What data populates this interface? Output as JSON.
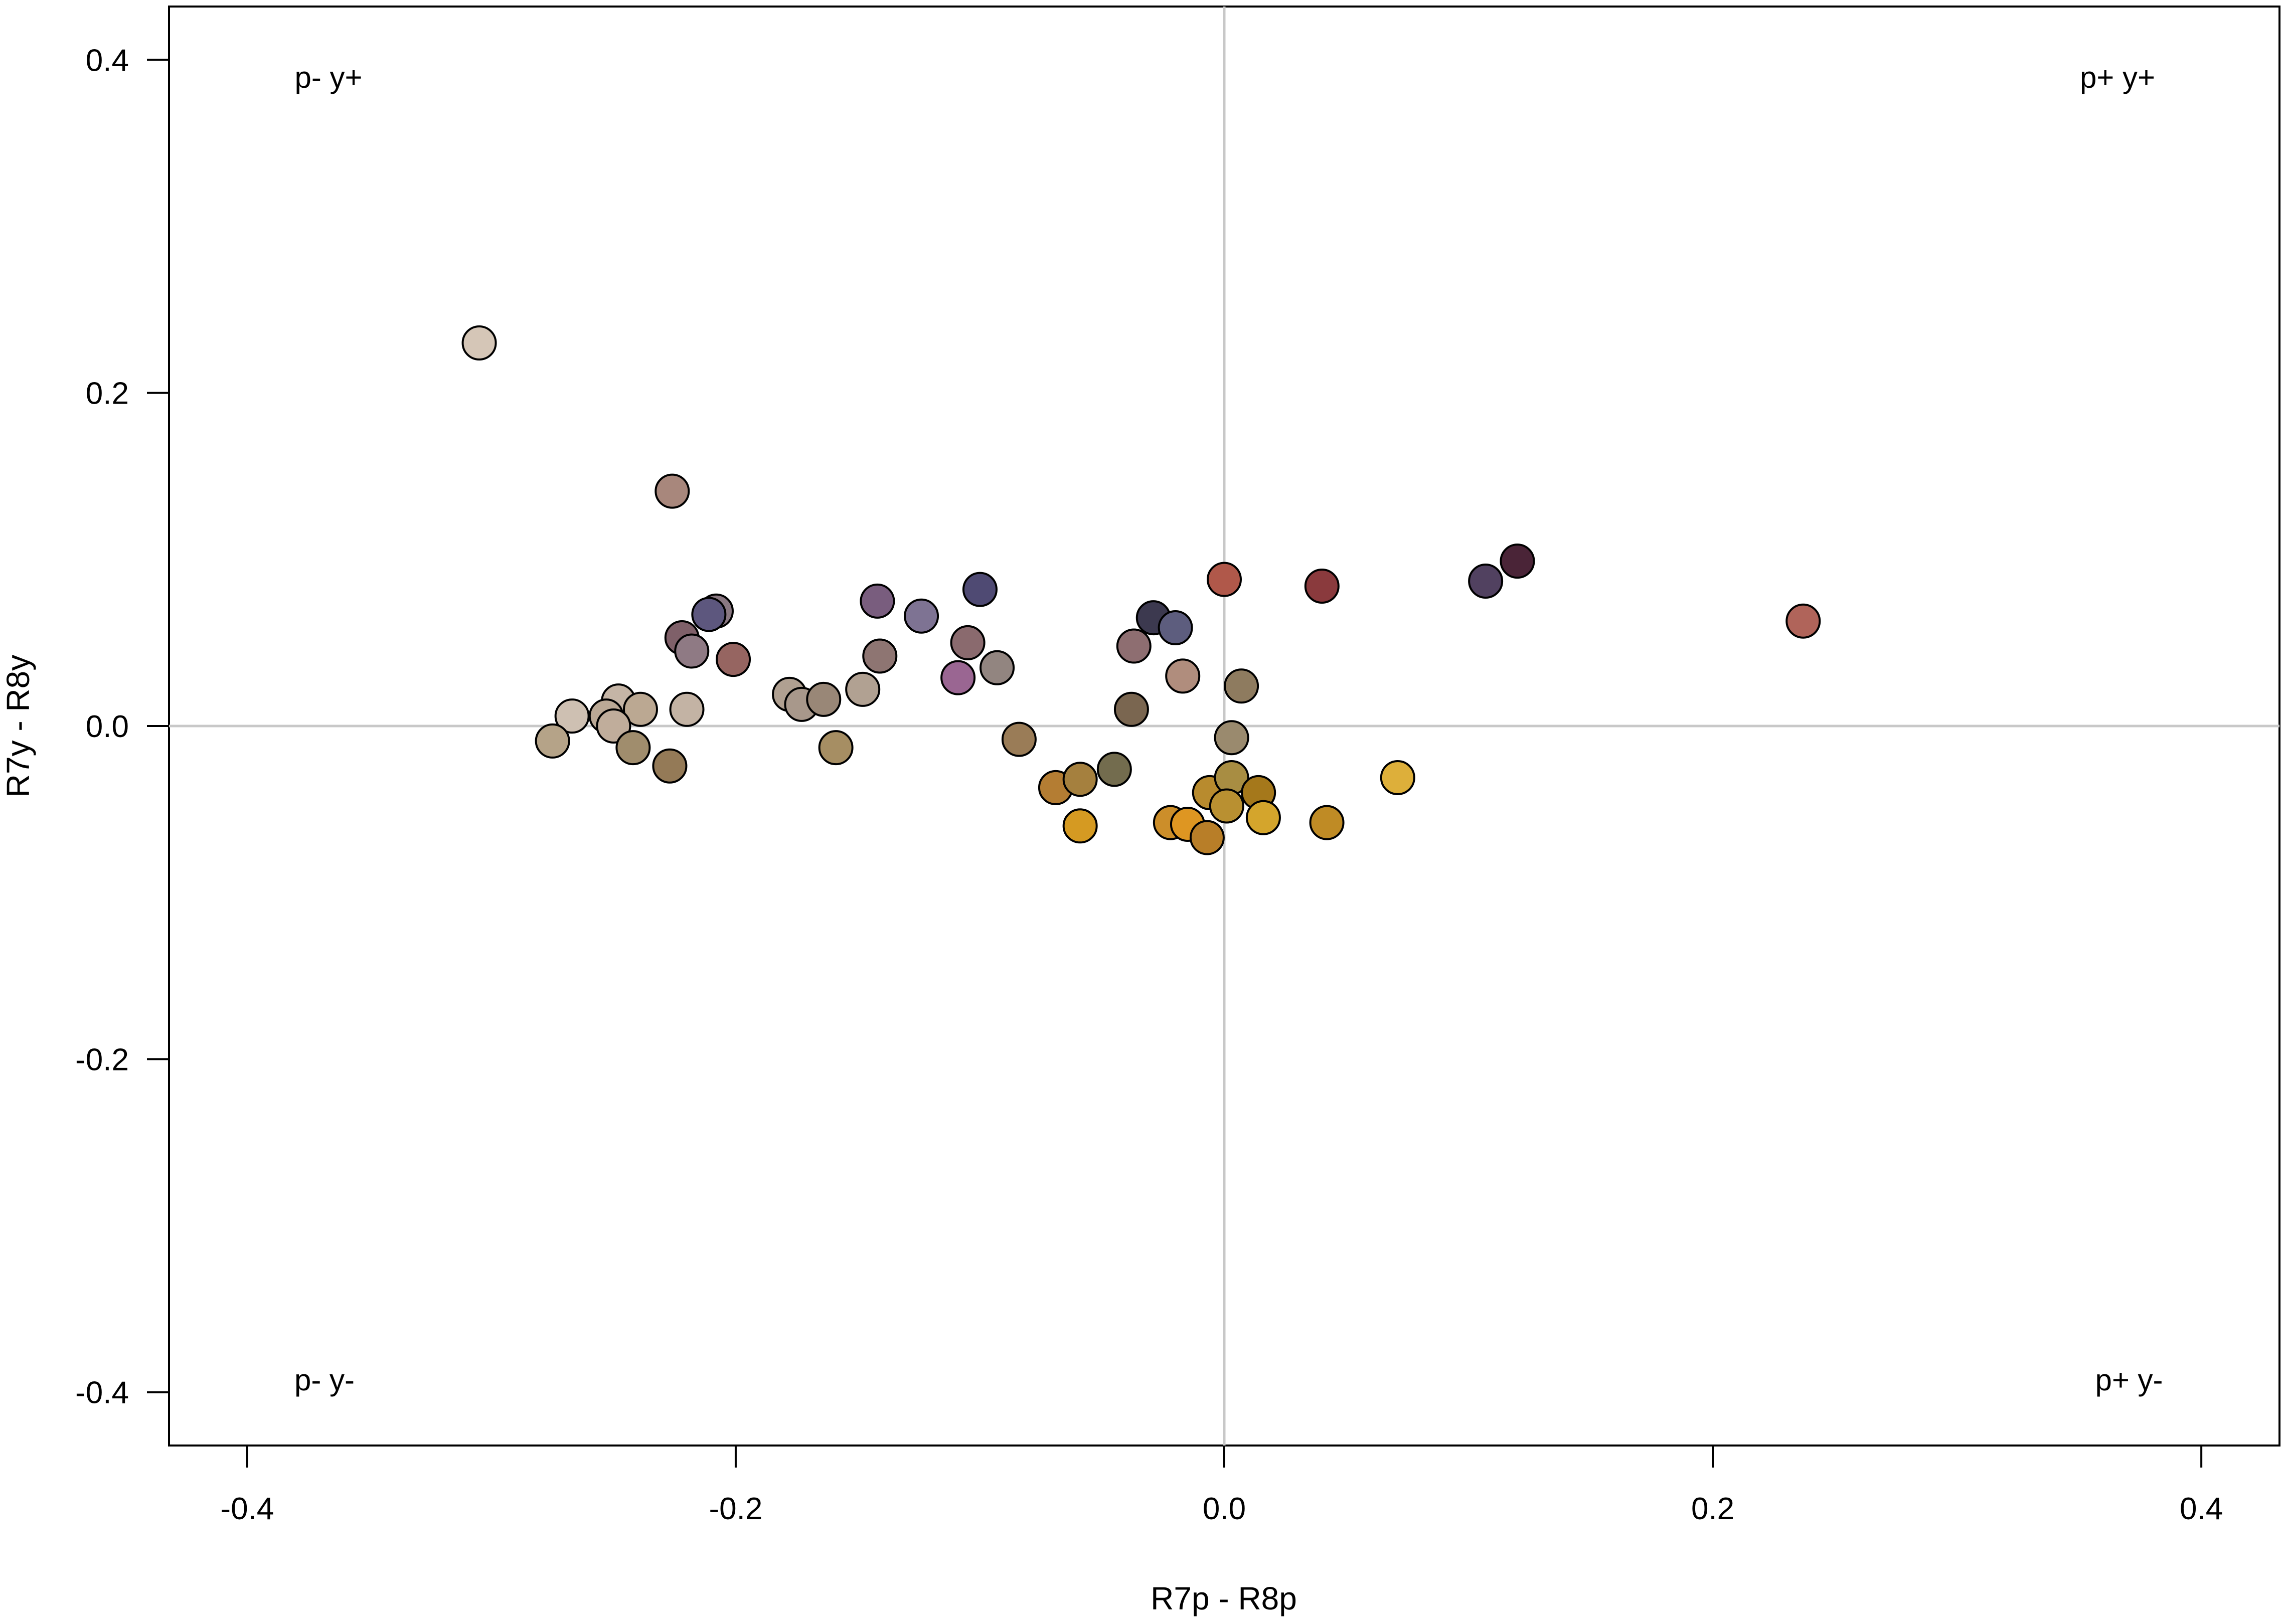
{
  "chart_data": {
    "type": "scatter",
    "xlabel": "R7p - R8p",
    "ylabel": "R7y - R8y",
    "xlim": [
      -0.432,
      0.432
    ],
    "ylim": [
      -0.432,
      0.432
    ],
    "xticks": [
      "-0.4",
      "-0.2",
      "0.0",
      "0.2",
      "0.4"
    ],
    "yticks": [
      "0.4",
      "0.2",
      "0.0",
      "-0.2",
      "-0.4"
    ],
    "reference_lines": {
      "x": 0.0,
      "y": 0.0,
      "color": "#c8c8c8"
    },
    "grid": false,
    "quadrant_labels": [
      {
        "text": "p- y+",
        "quadrant": "top-left"
      },
      {
        "text": "p+ y+",
        "quadrant": "top-right"
      },
      {
        "text": "p- y-",
        "quadrant": "bottom-left"
      },
      {
        "text": "p+ y-",
        "quadrant": "bottom-right"
      }
    ],
    "points": [
      {
        "x": -0.305,
        "y": 0.23,
        "color": "#d5c6b7"
      },
      {
        "x": -0.226,
        "y": 0.141,
        "color": "#a8877c"
      },
      {
        "x": -0.208,
        "y": 0.069,
        "color": "#8a7882"
      },
      {
        "x": -0.211,
        "y": 0.067,
        "color": "#5d577e"
      },
      {
        "x": -0.222,
        "y": 0.053,
        "color": "#7f6069"
      },
      {
        "x": -0.218,
        "y": 0.045,
        "color": "#8f7a84"
      },
      {
        "x": -0.201,
        "y": 0.04,
        "color": "#966561"
      },
      {
        "x": -0.248,
        "y": 0.015,
        "color": "#c5b5a6"
      },
      {
        "x": -0.267,
        "y": 0.006,
        "color": "#cec0b2"
      },
      {
        "x": -0.253,
        "y": 0.006,
        "color": "#bba996"
      },
      {
        "x": -0.239,
        "y": 0.01,
        "color": "#bba892"
      },
      {
        "x": -0.22,
        "y": 0.01,
        "color": "#c3b3a4"
      },
      {
        "x": -0.25,
        "y": 0.0,
        "color": "#c0ad9b"
      },
      {
        "x": -0.275,
        "y": -0.009,
        "color": "#b5a388"
      },
      {
        "x": -0.242,
        "y": -0.013,
        "color": "#a08d6d"
      },
      {
        "x": -0.227,
        "y": -0.024,
        "color": "#947a57"
      },
      {
        "x": -0.178,
        "y": 0.019,
        "color": "#b0a091"
      },
      {
        "x": -0.173,
        "y": 0.013,
        "color": "#a8988b"
      },
      {
        "x": -0.164,
        "y": 0.016,
        "color": "#998777"
      },
      {
        "x": -0.148,
        "y": 0.022,
        "color": "#b1a192"
      },
      {
        "x": -0.159,
        "y": -0.013,
        "color": "#a68e63"
      },
      {
        "x": -0.142,
        "y": 0.075,
        "color": "#795d7e"
      },
      {
        "x": -0.141,
        "y": 0.042,
        "color": "#8e7572"
      },
      {
        "x": -0.124,
        "y": 0.066,
        "color": "#7e7393"
      },
      {
        "x": -0.105,
        "y": 0.05,
        "color": "#8a6a6e"
      },
      {
        "x": -0.109,
        "y": 0.029,
        "color": "#9a6692"
      },
      {
        "x": -0.1,
        "y": 0.082,
        "color": "#4f4a73"
      },
      {
        "x": -0.093,
        "y": 0.035,
        "color": "#928580"
      },
      {
        "x": -0.084,
        "y": -0.008,
        "color": "#9a7c57"
      },
      {
        "x": -0.069,
        "y": -0.037,
        "color": "#b47d33"
      },
      {
        "x": -0.059,
        "y": -0.032,
        "color": "#a5803e"
      },
      {
        "x": -0.059,
        "y": -0.06,
        "color": "#d59a22"
      },
      {
        "x": -0.045,
        "y": -0.026,
        "color": "#736c4e"
      },
      {
        "x": -0.037,
        "y": 0.048,
        "color": "#8e6e71"
      },
      {
        "x": -0.038,
        "y": 0.01,
        "color": "#7a6650"
      },
      {
        "x": -0.029,
        "y": 0.065,
        "color": "#3c394f"
      },
      {
        "x": -0.02,
        "y": 0.059,
        "color": "#5d5d7e"
      },
      {
        "x": -0.017,
        "y": 0.03,
        "color": "#b08d7d"
      },
      {
        "x": -0.022,
        "y": -0.058,
        "color": "#cc8e2a"
      },
      {
        "x": -0.015,
        "y": -0.059,
        "color": "#de9622"
      },
      {
        "x": -0.007,
        "y": -0.067,
        "color": "#b87e28"
      },
      {
        "x": -0.006,
        "y": -0.04,
        "color": "#b88b2e"
      },
      {
        "x": 0.0,
        "y": 0.088,
        "color": "#b0584a"
      },
      {
        "x": 0.003,
        "y": -0.007,
        "color": "#9a8a6e"
      },
      {
        "x": 0.007,
        "y": 0.024,
        "color": "#8e7b5f"
      },
      {
        "x": 0.003,
        "y": -0.031,
        "color": "#a88d42"
      },
      {
        "x": 0.001,
        "y": -0.048,
        "color": "#b99031"
      },
      {
        "x": 0.014,
        "y": -0.04,
        "color": "#a5781b"
      },
      {
        "x": 0.016,
        "y": -0.055,
        "color": "#d4a52c"
      },
      {
        "x": 0.04,
        "y": 0.084,
        "color": "#8a3a3d"
      },
      {
        "x": 0.042,
        "y": -0.058,
        "color": "#bf8b25"
      },
      {
        "x": 0.071,
        "y": -0.031,
        "color": "#ddaf3a"
      },
      {
        "x": 0.107,
        "y": 0.087,
        "color": "#514160"
      },
      {
        "x": 0.12,
        "y": 0.099,
        "color": "#4a2437"
      },
      {
        "x": 0.237,
        "y": 0.063,
        "color": "#b0645a"
      }
    ]
  }
}
